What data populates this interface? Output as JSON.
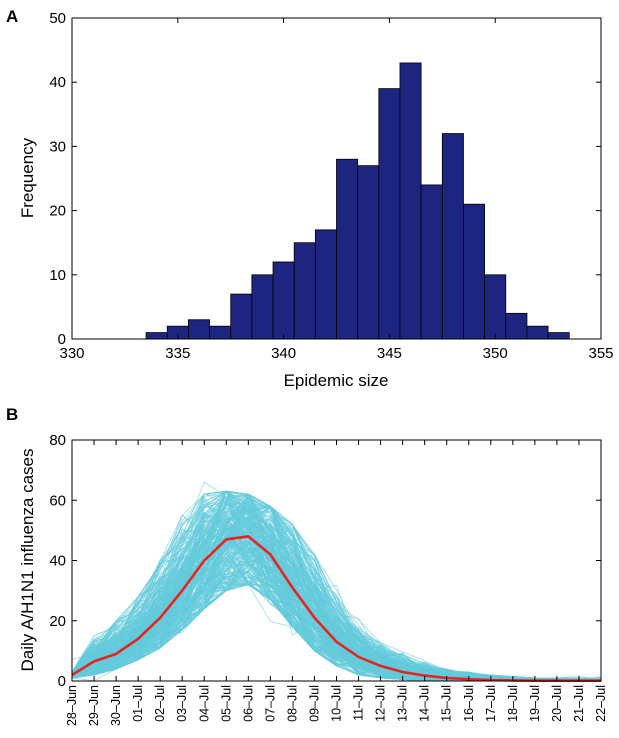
{
  "panels": {
    "a_letter": "A",
    "b_letter": "B"
  },
  "chart_data": [
    {
      "type": "bar",
      "xlabel": "Epidemic size",
      "ylabel": "Frequency",
      "xlim": [
        330,
        355
      ],
      "ylim": [
        0,
        50
      ],
      "xticks": [
        "330",
        "335",
        "340",
        "345",
        "350",
        "355"
      ],
      "yticks": [
        "0",
        "10",
        "20",
        "30",
        "40",
        "50"
      ],
      "bin_start": 333.5,
      "bin_width": 1,
      "values": [
        1,
        2,
        3,
        2,
        7,
        10,
        12,
        15,
        17,
        28,
        27,
        39,
        43,
        24,
        32,
        21,
        10,
        4,
        2,
        1
      ],
      "bar_color": "#1e2580"
    },
    {
      "type": "line",
      "xlabel": "",
      "ylabel": "Daily A/H1N1 influenza cases",
      "ylim": [
        0,
        80
      ],
      "yticks": [
        "0",
        "20",
        "40",
        "60",
        "80"
      ],
      "categories": [
        "28–Jun",
        "29–Jun",
        "30–Jun",
        "01–Jul",
        "02–Jul",
        "03–Jul",
        "04–Jul",
        "05–Jul",
        "06–Jul",
        "07–Jul",
        "08–Jul",
        "09–Jul",
        "10–Jul",
        "11–Jul",
        "12–Jul",
        "13–Jul",
        "14–Jul",
        "15–Jul",
        "16–Jul",
        "17–Jul",
        "18–Jul",
        "19–Jul",
        "20–Jul",
        "21–Jul",
        "22–Jul"
      ],
      "series": [
        {
          "role": "mean",
          "color": "#e8231e",
          "values": [
            2,
            6.5,
            9,
            14,
            21,
            30,
            40,
            47,
            48,
            42,
            31,
            21,
            13,
            8,
            5,
            3,
            1.8,
            1,
            0.6,
            0.3,
            0.2,
            0.1,
            0.1,
            0.1,
            0.1
          ]
        },
        {
          "role": "simulations",
          "color": "#64cbdc",
          "count": 300,
          "band_low": [
            1,
            2,
            4,
            7,
            11,
            17,
            24,
            30,
            32,
            27,
            18,
            10,
            5,
            2,
            1,
            0.5,
            0.2,
            0.1,
            0,
            0,
            0,
            0,
            0,
            0,
            0
          ],
          "band_high": [
            3,
            15,
            20,
            28,
            40,
            55,
            62,
            63,
            62,
            58,
            52,
            42,
            31,
            22,
            15,
            10,
            7,
            4,
            3,
            2,
            1.5,
            1,
            1,
            1,
            1
          ]
        }
      ]
    }
  ]
}
